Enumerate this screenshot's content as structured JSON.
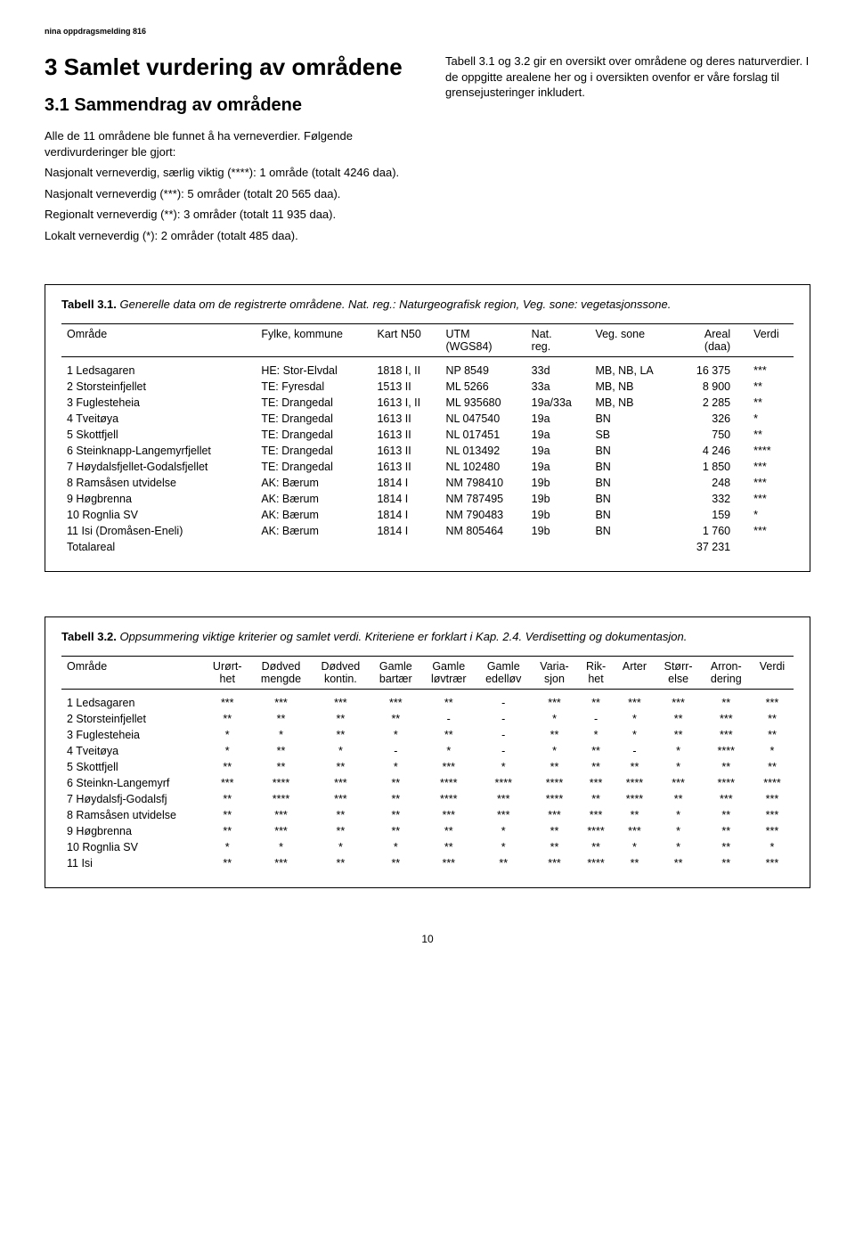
{
  "header": "nina oppdragsmelding 816",
  "title": "3 Samlet vurdering av områdene",
  "subtitle": "3.1 Sammendrag av områdene",
  "left_paragraphs": [
    "Alle de 11 områdene ble funnet å ha verneverdier. Følgende verdivurderinger ble gjort:",
    "Nasjonalt verneverdig, særlig viktig (****): 1 område (totalt 4246 daa).",
    "Nasjonalt verneverdig (***): 5 områder (totalt 20 565 daa).",
    "Regionalt verneverdig (**): 3 områder (totalt 11 935 daa).",
    "Lokalt verneverdig (*): 2 områder (totalt 485 daa)."
  ],
  "right_paragraph": "Tabell 3.1 og 3.2 gir en oversikt over områdene og deres naturverdier. I de oppgitte arealene her og i oversikten ovenfor er våre forslag til grensejusteringer inkludert.",
  "table1": {
    "caption_bold": "Tabell 3.1.",
    "caption_rest": " Generelle data om de registrerte områdene. Nat. reg.: Naturgeografisk region, Veg. sone: vegetasjonssone.",
    "headers": [
      "Område",
      "Fylke, kommune",
      "Kart N50",
      "UTM\n(WGS84)",
      "Nat.\nreg.",
      "Veg. sone",
      "Areal\n(daa)",
      "Verdi"
    ],
    "rows": [
      [
        "1 Ledsagaren",
        "HE: Stor-Elvdal",
        "1818 I, II",
        "NP 8549",
        "33d",
        "MB, NB, LA",
        "16 375",
        "***"
      ],
      [
        "2 Storsteinfjellet",
        "TE: Fyresdal",
        "1513 II",
        "ML 5266",
        "33a",
        "MB, NB",
        "8 900",
        "**"
      ],
      [
        "3 Fuglesteheia",
        "TE: Drangedal",
        "1613 I, II",
        "ML 935680",
        "19a/33a",
        "MB, NB",
        "2 285",
        "**"
      ],
      [
        "4 Tveitøya",
        "TE: Drangedal",
        "1613 II",
        "NL 047540",
        "19a",
        "BN",
        "326",
        "*"
      ],
      [
        "5 Skottfjell",
        "TE: Drangedal",
        "1613 II",
        "NL 017451",
        "19a",
        "SB",
        "750",
        "**"
      ],
      [
        "6 Steinknapp-Langemyrfjellet",
        "TE: Drangedal",
        "1613 II",
        "NL 013492",
        "19a",
        "BN",
        "4 246",
        "****"
      ],
      [
        "7 Høydalsfjellet-Godalsfjellet",
        "TE: Drangedal",
        "1613 II",
        "NL 102480",
        "19a",
        "BN",
        "1 850",
        "***"
      ],
      [
        "8 Ramsåsen utvidelse",
        "AK: Bærum",
        "1814 I",
        "NM 798410",
        "19b",
        "BN",
        "248",
        "***"
      ],
      [
        "9 Høgbrenna",
        "AK: Bærum",
        "1814 I",
        "NM 787495",
        "19b",
        "BN",
        "332",
        "***"
      ],
      [
        "10 Rognlia SV",
        "AK: Bærum",
        "1814 I",
        "NM 790483",
        "19b",
        "BN",
        "159",
        "*"
      ],
      [
        "11 Isi (Dromåsen-Eneli)",
        "AK: Bærum",
        "1814 I",
        "NM 805464",
        "19b",
        "BN",
        "1 760",
        "***"
      ],
      [
        "Totalareal",
        "",
        "",
        "",
        "",
        "",
        "37 231",
        ""
      ]
    ]
  },
  "table2": {
    "caption_bold": "Tabell 3.2.",
    "caption_rest": " Oppsummering viktige kriterier og samlet verdi. Kriteriene er forklart i Kap. 2.4. Verdisetting og dokumentasjon.",
    "headers": [
      "Område",
      "Urørt-\nhet",
      "Dødved\nmengde",
      "Dødved\nkontin.",
      "Gamle\nbartær",
      "Gamle\nløvtrær",
      "Gamle\nedelløv",
      "Varia-\nsjon",
      "Rik-\nhet",
      "Arter",
      "Størr-\nelse",
      "Arron-\ndering",
      "Verdi"
    ],
    "rows": [
      [
        "1 Ledsagaren",
        "***",
        "***",
        "***",
        "***",
        "**",
        "-",
        "***",
        "**",
        "***",
        "***",
        "**",
        "***"
      ],
      [
        "2 Storsteinfjellet",
        "**",
        "**",
        "**",
        "**",
        "-",
        "-",
        "*",
        "-",
        "*",
        "**",
        "***",
        "**"
      ],
      [
        "3 Fuglesteheia",
        "*",
        "*",
        "**",
        "*",
        "**",
        "-",
        "**",
        "*",
        "*",
        "**",
        "***",
        "**"
      ],
      [
        "4 Tveitøya",
        "*",
        "**",
        "*",
        "-",
        "*",
        "-",
        "*",
        "**",
        "-",
        "*",
        "****",
        "*"
      ],
      [
        "5 Skottfjell",
        "**",
        "**",
        "**",
        "*",
        "***",
        "*",
        "**",
        "**",
        "**",
        "*",
        "**",
        "**"
      ],
      [
        "6 Steinkn-Langemyrf",
        "***",
        "****",
        "***",
        "**",
        "****",
        "****",
        "****",
        "***",
        "****",
        "***",
        "****",
        "****"
      ],
      [
        "7 Høydalsfj-Godalsfj",
        "**",
        "****",
        "***",
        "**",
        "****",
        "***",
        "****",
        "**",
        "****",
        "**",
        "***",
        "***"
      ],
      [
        "8 Ramsåsen utvidelse",
        "**",
        "***",
        "**",
        "**",
        "***",
        "***",
        "***",
        "***",
        "**",
        "*",
        "**",
        "***"
      ],
      [
        "9 Høgbrenna",
        "**",
        "***",
        "**",
        "**",
        "**",
        "*",
        "**",
        "****",
        "***",
        "*",
        "**",
        "***"
      ],
      [
        "10 Rognlia SV",
        "*",
        "*",
        "*",
        "*",
        "**",
        "*",
        "**",
        "**",
        "*",
        "*",
        "**",
        "*"
      ],
      [
        "11 Isi",
        "**",
        "***",
        "**",
        "**",
        "***",
        "**",
        "***",
        "****",
        "**",
        "**",
        "**",
        "***"
      ]
    ]
  },
  "page_number": "10"
}
